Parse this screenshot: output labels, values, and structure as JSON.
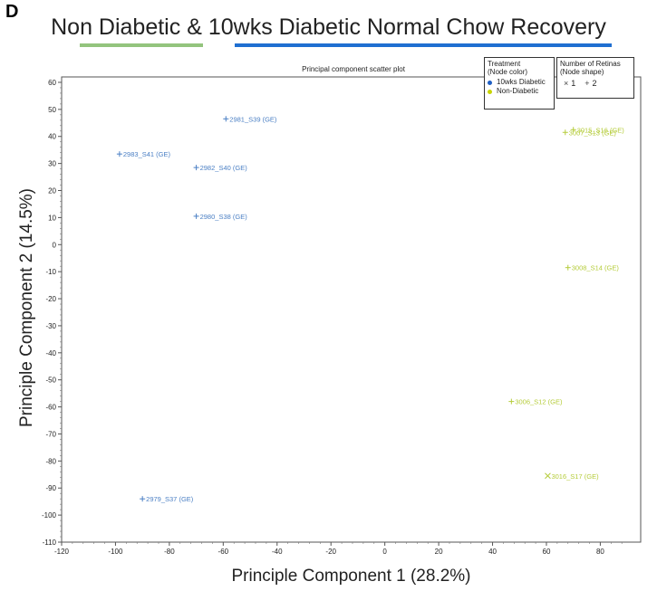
{
  "panel_letter": "D",
  "headline": {
    "part1": "Non Diabetic",
    "amp": " & ",
    "part2": "10wks Diabetic Normal Chow Recovery"
  },
  "colors": {
    "diabetic": "#4a7fc4",
    "non_diabetic": "#b5cc3a",
    "underline_green": "#93c47d",
    "underline_blue": "#1f6fd1"
  },
  "legend_treatment": {
    "title1": "Treatment",
    "title2": "(Node color)",
    "items": [
      {
        "label": "10wks Diabetic",
        "color": "#1f5fc4"
      },
      {
        "label": "Non-Diabetic",
        "color": "#c8d400"
      }
    ]
  },
  "legend_retinas": {
    "title1": "Number of Retinas",
    "title2": "(Node shape)",
    "item1_symbol": "×",
    "item1_label": "1",
    "item2_symbol": "+",
    "item2_label": "2"
  },
  "chart_data": {
    "type": "scatter",
    "title": "Principal component scatter plot",
    "xlabel": "Principle Component 1 (28.2%)",
    "ylabel": "Principle Component 2 (14.5%)",
    "xlim": [
      -120,
      95
    ],
    "ylim": [
      -110,
      62
    ],
    "xticks": [
      -120,
      -100,
      -80,
      -60,
      -40,
      -20,
      0,
      20,
      40,
      60,
      80
    ],
    "yticks": [
      60,
      50,
      40,
      30,
      20,
      10,
      0,
      -10,
      -20,
      -30,
      -40,
      -50,
      -60,
      -70,
      -80,
      -90,
      -100,
      -110
    ],
    "grid": false,
    "points": [
      {
        "label": "2981_S39 (GE)",
        "x": -59,
        "y": 46.5,
        "group": "diabetic",
        "shape": "+"
      },
      {
        "label": "2983_S41 (GE)",
        "x": -98.5,
        "y": 33.5,
        "group": "diabetic",
        "shape": "+"
      },
      {
        "label": "2982_S40 (GE)",
        "x": -70,
        "y": 28.5,
        "group": "diabetic",
        "shape": "+"
      },
      {
        "label": "2980_S38 (GE)",
        "x": -70,
        "y": 10.5,
        "group": "diabetic",
        "shape": "+"
      },
      {
        "label": "2979_S37 (GE)",
        "x": -90,
        "y": -94,
        "group": "diabetic",
        "shape": "+"
      },
      {
        "label": "3015_S16 (GE)",
        "x": 70,
        "y": 42.5,
        "group": "non_diabetic",
        "shape": "+"
      },
      {
        "label": "3007_S13 (GE)",
        "x": 67,
        "y": 41.5,
        "group": "non_diabetic",
        "shape": "+"
      },
      {
        "label": "3008_S14 (GE)",
        "x": 68,
        "y": -8.5,
        "group": "non_diabetic",
        "shape": "+"
      },
      {
        "label": "3006_S12 (GE)",
        "x": 47,
        "y": -58,
        "group": "non_diabetic",
        "shape": "+"
      },
      {
        "label": "3016_S17 (GE)",
        "x": 60.5,
        "y": -85.5,
        "group": "non_diabetic",
        "shape": "×"
      }
    ]
  }
}
